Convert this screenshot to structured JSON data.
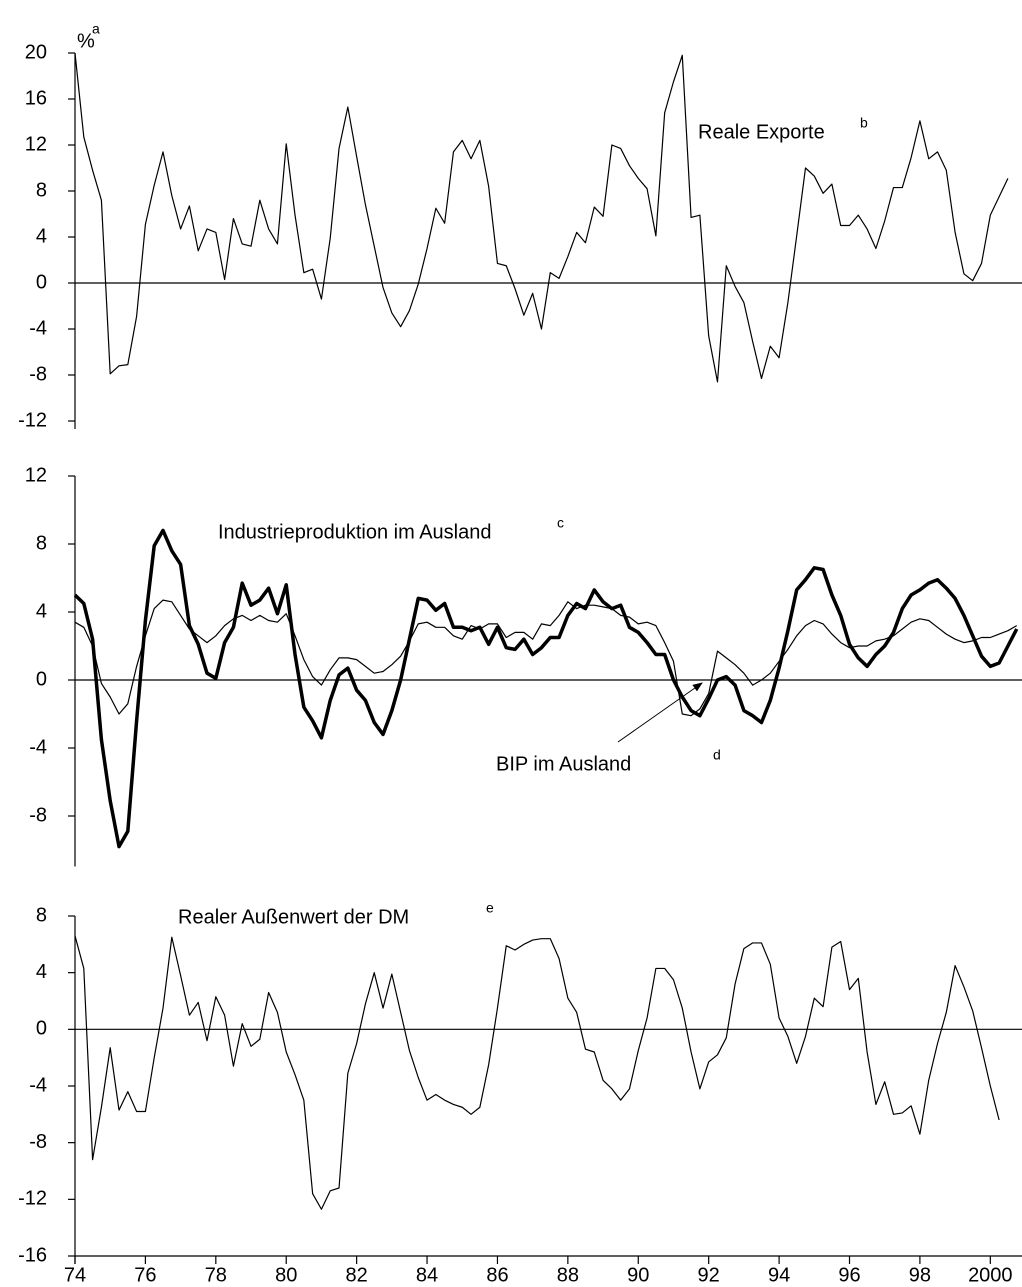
{
  "chart_data": [
    {
      "type": "line",
      "ylabel": "%",
      "ylabel_note": "a",
      "xlim": [
        1974,
        2000.9
      ],
      "ylim": [
        -12,
        20
      ],
      "yticks": [
        20,
        16,
        12,
        8,
        4,
        0,
        -4,
        -8,
        -12
      ],
      "zero_line": true,
      "x": [
        1974,
        1974.25,
        1974.5,
        1974.75,
        1975,
        1975.25,
        1975.5,
        1975.75,
        1976,
        1976.25,
        1976.5,
        1976.75,
        1977,
        1977.25,
        1977.5,
        1977.75,
        1978,
        1978.25,
        1978.5,
        1978.75,
        1979,
        1979.25,
        1979.5,
        1979.75,
        1980,
        1980.25,
        1980.5,
        1980.75,
        1981,
        1981.25,
        1981.5,
        1981.75,
        1982,
        1982.25,
        1982.5,
        1982.75,
        1983,
        1983.25,
        1983.5,
        1983.75,
        1984,
        1984.25,
        1984.5,
        1984.75,
        1985,
        1985.25,
        1985.5,
        1985.75,
        1986,
        1986.25,
        1986.5,
        1986.75,
        1987,
        1987.25,
        1987.5,
        1987.75,
        1988,
        1988.25,
        1988.5,
        1988.75,
        1989,
        1989.25,
        1989.5,
        1989.75,
        1990,
        1990.25,
        1990.5,
        1990.75,
        1991,
        1991.25,
        1991.5,
        1991.75,
        1992,
        1992.25,
        1992.5,
        1992.75,
        1993,
        1993.25,
        1993.5,
        1993.75,
        1994,
        1994.25,
        1994.5,
        1994.75,
        1995,
        1995.25,
        1995.5,
        1995.75,
        1996,
        1996.25,
        1996.5,
        1996.75,
        1997,
        1997.25,
        1997.5,
        1997.75,
        1998,
        1998.25,
        1998.5,
        1998.75,
        1999,
        1999.25,
        1999.5,
        1999.75,
        2000,
        2000.25,
        2000.5
      ],
      "series": [
        {
          "name": "Reale Exporte",
          "note": "b",
          "color": "#000000",
          "line_width": 1.2,
          "values": [
            20,
            12.7,
            9.8,
            7.2,
            -7.9,
            -7.2,
            -7.1,
            -2.9,
            5.1,
            8.5,
            11.4,
            7.6,
            4.7,
            6.7,
            2.8,
            4.7,
            4.4,
            0.3,
            5.6,
            3.4,
            3.2,
            7.2,
            4.7,
            3.4,
            12.1,
            5.9,
            0.9,
            1.2,
            -1.4,
            3.9,
            11.7,
            15.3,
            11,
            6.8,
            3.2,
            -0.4,
            -2.6,
            -3.8,
            -2.4,
            -0.1,
            3,
            6.5,
            5.2,
            11.4,
            12.4,
            10.8,
            12.4,
            8.4,
            1.7,
            1.5,
            -0.5,
            -2.8,
            -0.9,
            -4,
            0.9,
            0.4,
            2.3,
            4.4,
            3.5,
            6.6,
            5.8,
            12,
            11.7,
            10.2,
            9.1,
            8.2,
            4.1,
            14.8,
            17.5,
            19.8,
            5.7,
            5.9,
            -4.6,
            -8.6,
            1.5,
            -0.3,
            -1.7,
            -5.1,
            -8.3,
            -5.5,
            -6.5,
            -1.7,
            4.1,
            10,
            9.3,
            7.8,
            8.6,
            5,
            5,
            5.9,
            4.7,
            3,
            5.4,
            8.3,
            8.3,
            10.9,
            14.1,
            10.8,
            11.4,
            9.8,
            4.4,
            0.8,
            0.2,
            1.7,
            5.9,
            7.5,
            9.1
          ]
        }
      ]
    },
    {
      "type": "line",
      "xlim": [
        1974,
        2000.9
      ],
      "ylim": [
        -10.5,
        12
      ],
      "yticks": [
        12,
        8,
        4,
        0,
        -4,
        -8
      ],
      "zero_line": true,
      "x": [
        1974,
        1974.25,
        1974.5,
        1974.75,
        1975,
        1975.25,
        1975.5,
        1975.75,
        1976,
        1976.25,
        1976.5,
        1976.75,
        1977,
        1977.25,
        1977.5,
        1977.75,
        1978,
        1978.25,
        1978.5,
        1978.75,
        1979,
        1979.25,
        1979.5,
        1979.75,
        1980,
        1980.25,
        1980.5,
        1980.75,
        1981,
        1981.25,
        1981.5,
        1981.75,
        1982,
        1982.25,
        1982.5,
        1982.75,
        1983,
        1983.25,
        1983.5,
        1983.75,
        1984,
        1984.25,
        1984.5,
        1984.75,
        1985,
        1985.25,
        1985.5,
        1985.75,
        1986,
        1986.25,
        1986.5,
        1986.75,
        1987,
        1987.25,
        1987.5,
        1987.75,
        1988,
        1988.25,
        1988.5,
        1988.75,
        1989,
        1989.25,
        1989.5,
        1989.75,
        1990,
        1990.25,
        1990.5,
        1990.75,
        1991,
        1991.25,
        1991.5,
        1991.75,
        1992,
        1992.25,
        1992.5,
        1992.75,
        1993,
        1993.25,
        1993.5,
        1993.75,
        1994,
        1994.25,
        1994.5,
        1994.75,
        1995,
        1995.25,
        1995.5,
        1995.75,
        1996,
        1996.25,
        1996.5,
        1996.75,
        1997,
        1997.25,
        1997.5,
        1997.75,
        1998,
        1998.25,
        1998.5,
        1998.75,
        1999,
        1999.25,
        1999.5,
        1999.75,
        2000,
        2000.25,
        2000.5,
        2000.75
      ],
      "series": [
        {
          "name": "Industrieproduktion im Ausland",
          "note": "c",
          "color": "#000000",
          "line_width": 3.5,
          "values": [
            5.0,
            4.5,
            2.4,
            -3.5,
            -7.1,
            -9.8,
            -8.9,
            -2.4,
            3.5,
            7.9,
            8.8,
            7.6,
            6.8,
            3.2,
            2.1,
            0.4,
            0.1,
            2.2,
            3.1,
            5.7,
            4.4,
            4.7,
            5.4,
            3.9,
            5.6,
            1.5,
            -1.6,
            -2.4,
            -3.4,
            -1.2,
            0.3,
            0.7,
            -0.6,
            -1.2,
            -2.5,
            -3.2,
            -1.8,
            0,
            2.4,
            4.8,
            4.7,
            4.1,
            4.5,
            3.1,
            3.1,
            2.9,
            3.1,
            2.1,
            3.1,
            1.9,
            1.8,
            2.4,
            1.5,
            1.9,
            2.5,
            2.5,
            3.8,
            4.5,
            4.2,
            5.3,
            4.6,
            4.2,
            4.4,
            3.1,
            2.8,
            2.2,
            1.5,
            1.5,
            0,
            -1,
            -1.8,
            -2.1,
            -1.1,
            0,
            0.2,
            -0.3,
            -1.8,
            -2.1,
            -2.5,
            -1.2,
            0.7,
            2.9,
            5.3,
            5.9,
            6.6,
            6.5,
            5.0,
            3.8,
            2.1,
            1.3,
            0.8,
            1.5,
            2.0,
            2.8,
            4.2,
            5.0,
            5.3,
            5.7,
            5.9,
            5.4,
            4.8,
            3.8,
            2.6,
            1.4,
            0.8,
            1.0,
            2.0,
            3.0
          ]
        },
        {
          "name": "BIP im Ausland",
          "note": "d",
          "color": "#000000",
          "line_width": 1.2,
          "values": [
            3.4,
            3.1,
            2.0,
            -0.2,
            -1.0,
            -2.0,
            -1.4,
            0.8,
            2.6,
            4.2,
            4.7,
            4.6,
            3.8,
            3.0,
            2.6,
            2.2,
            2.6,
            3.2,
            3.6,
            3.8,
            3.5,
            3.8,
            3.5,
            3.4,
            3.9,
            2.6,
            1.2,
            0.2,
            -0.3,
            0.6,
            1.3,
            1.3,
            1.2,
            0.8,
            0.4,
            0.5,
            0.9,
            1.4,
            2.3,
            3.3,
            3.4,
            3.1,
            3.1,
            2.6,
            2.4,
            3.2,
            3.0,
            3.3,
            3.3,
            2.5,
            2.8,
            2.8,
            2.4,
            3.3,
            3.2,
            3.8,
            4.6,
            4.2,
            4.4,
            4.4,
            4.3,
            4.2,
            3.8,
            3.7,
            3.3,
            3.4,
            3.2,
            2.2,
            1.1,
            -2.0,
            -2.1,
            -1.7,
            -0.8,
            1.7,
            1.3,
            0.9,
            0.4,
            -0.3,
            0.0,
            0.4,
            1.1,
            1.8,
            2.6,
            3.2,
            3.5,
            3.3,
            2.7,
            2.2,
            1.9,
            2.0,
            2.0,
            2.3,
            2.4,
            2.6,
            3.0,
            3.4,
            3.6,
            3.5,
            3.1,
            2.7,
            2.4,
            2.2,
            2.3,
            2.5,
            2.5,
            2.7,
            2.9,
            3.2
          ]
        }
      ]
    },
    {
      "type": "line",
      "xlim": [
        1974,
        2000.9
      ],
      "ylim": [
        -16,
        8
      ],
      "yticks": [
        8,
        4,
        0,
        -4,
        -8,
        -12,
        -16
      ],
      "zero_line": true,
      "xticks": [
        {
          "value": 1974,
          "label": "74"
        },
        {
          "value": 1976,
          "label": "76"
        },
        {
          "value": 1978,
          "label": "78"
        },
        {
          "value": 1980,
          "label": "80"
        },
        {
          "value": 1982,
          "label": "82"
        },
        {
          "value": 1984,
          "label": "84"
        },
        {
          "value": 1986,
          "label": "86"
        },
        {
          "value": 1988,
          "label": "88"
        },
        {
          "value": 1990,
          "label": "90"
        },
        {
          "value": 1992,
          "label": "92"
        },
        {
          "value": 1994,
          "label": "94"
        },
        {
          "value": 1996,
          "label": "96"
        },
        {
          "value": 1998,
          "label": "98"
        },
        2000
      ],
      "x": [
        1974,
        1974.25,
        1974.5,
        1974.75,
        1975,
        1975.25,
        1975.5,
        1975.75,
        1976,
        1976.25,
        1976.5,
        1976.75,
        1977,
        1977.25,
        1977.5,
        1977.75,
        1978,
        1978.25,
        1978.5,
        1978.75,
        1979,
        1979.25,
        1979.5,
        1979.75,
        1980,
        1980.25,
        1980.5,
        1980.75,
        1981,
        1981.25,
        1981.5,
        1981.75,
        1982,
        1982.25,
        1982.5,
        1982.75,
        1983,
        1983.25,
        1983.5,
        1983.75,
        1984,
        1984.25,
        1984.5,
        1984.75,
        1985,
        1985.25,
        1985.5,
        1985.75,
        1986,
        1986.25,
        1986.5,
        1986.75,
        1987,
        1987.25,
        1987.5,
        1987.75,
        1988,
        1988.25,
        1988.5,
        1988.75,
        1989,
        1989.25,
        1989.5,
        1989.75,
        1990,
        1990.25,
        1990.5,
        1990.75,
        1991,
        1991.25,
        1991.5,
        1991.75,
        1992,
        1992.25,
        1992.5,
        1992.75,
        1993,
        1993.25,
        1993.5,
        1993.75,
        1994,
        1994.25,
        1994.5,
        1994.75,
        1995,
        1995.25,
        1995.5,
        1995.75,
        1996,
        1996.25,
        1996.5,
        1996.75,
        1997,
        1997.25,
        1997.5,
        1997.75,
        1998,
        1998.25,
        1998.5,
        1998.75,
        1999,
        1999.25,
        1999.5,
        1999.75,
        2000,
        2000.25
      ],
      "series": [
        {
          "name": "Realer Außenwert der DM",
          "note": "e",
          "color": "#000000",
          "line_width": 1.2,
          "values": [
            6.6,
            4.3,
            -9.2,
            -5.5,
            -1.3,
            -5.7,
            -4.4,
            -5.8,
            -5.8,
            -2.0,
            1.5,
            6.5,
            3.8,
            1.0,
            1.9,
            -0.8,
            2.3,
            1.0,
            -2.6,
            0.4,
            -1.2,
            -0.7,
            2.6,
            1.2,
            -1.6,
            -3.2,
            -5.0,
            -11.6,
            -12.7,
            -11.4,
            -11.2,
            -3.1,
            -1.0,
            1.8,
            4.0,
            1.5,
            3.9,
            1.2,
            -1.5,
            -3.4,
            -5.0,
            -4.6,
            -5.0,
            -5.3,
            -5.5,
            -6.0,
            -5.5,
            -2.5,
            1.5,
            5.9,
            5.6,
            6.0,
            6.3,
            6.4,
            6.4,
            5.0,
            2.2,
            1.2,
            -1.4,
            -1.6,
            -3.6,
            -4.2,
            -5.0,
            -4.2,
            -1.5,
            0.8,
            4.3,
            4.3,
            3.5,
            1.5,
            -1.6,
            -4.2,
            -2.3,
            -1.8,
            -0.6,
            3.2,
            5.7,
            6.1,
            6.1,
            4.6,
            0.8,
            -0.5,
            -2.4,
            -0.5,
            2.2,
            1.6,
            5.8,
            6.2,
            2.8,
            3.6,
            -1.6,
            -5.3,
            -3.7,
            -6.0,
            -5.9,
            -5.4,
            -7.4,
            -3.6,
            -1.0,
            1.2,
            4.5,
            3.0,
            1.3,
            -1.3,
            -4.0,
            -6.4
          ]
        }
      ]
    }
  ]
}
